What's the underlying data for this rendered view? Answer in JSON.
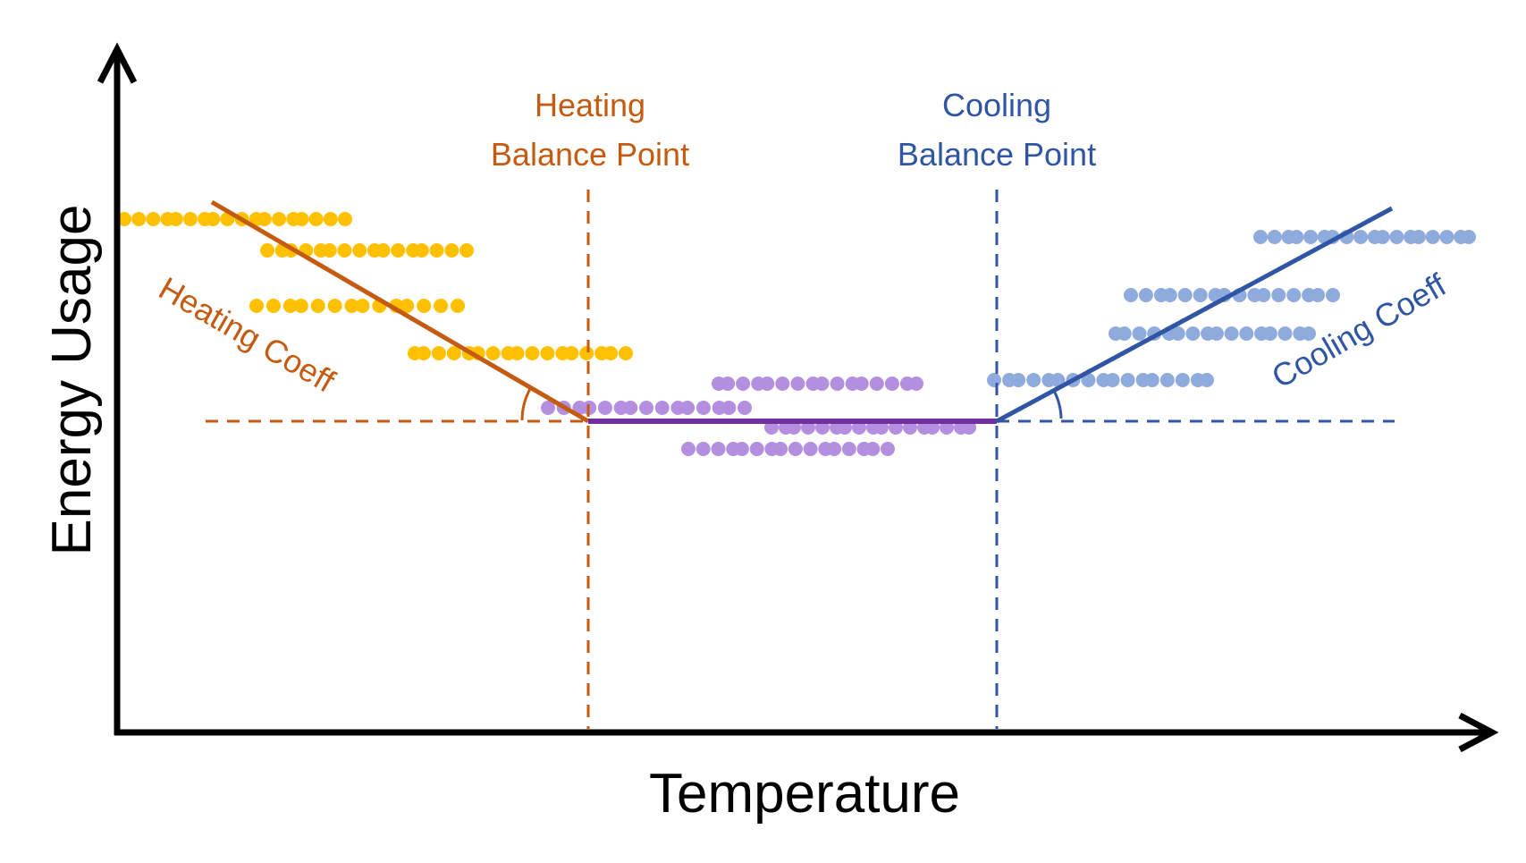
{
  "axes": {
    "x_label": "Temperature",
    "y_label": "Energy Usage"
  },
  "heating_balance_point": {
    "line1": "Heating",
    "line2": "Balance Point"
  },
  "cooling_balance_point": {
    "line1": "Cooling",
    "line2": "Balance Point"
  },
  "heating_coeff_label": "Heating Coeff",
  "cooling_coeff_label": "Cooling Coeff",
  "colors": {
    "heating": "#C55A11",
    "cooling": "#2F55A4",
    "baseload": "#7030A0",
    "heating_points": "#FFC000",
    "baseload_points": "#B48FE0",
    "cooling_points": "#8FAADC",
    "axis": "#000000"
  },
  "point_rows": [
    {
      "group": "heating",
      "count": 18
    },
    {
      "group": "heating",
      "count": 16
    },
    {
      "group": "heating",
      "count": 14
    },
    {
      "group": "heating",
      "count": 17
    },
    {
      "group": "baseload",
      "count": 15
    },
    {
      "group": "baseload",
      "count": 16
    },
    {
      "group": "baseload",
      "count": 17
    },
    {
      "group": "baseload",
      "count": 16
    },
    {
      "group": "cooling",
      "count": 17
    },
    {
      "group": "cooling",
      "count": 16
    },
    {
      "group": "cooling",
      "count": 16
    },
    {
      "group": "cooling",
      "count": 18
    }
  ]
}
